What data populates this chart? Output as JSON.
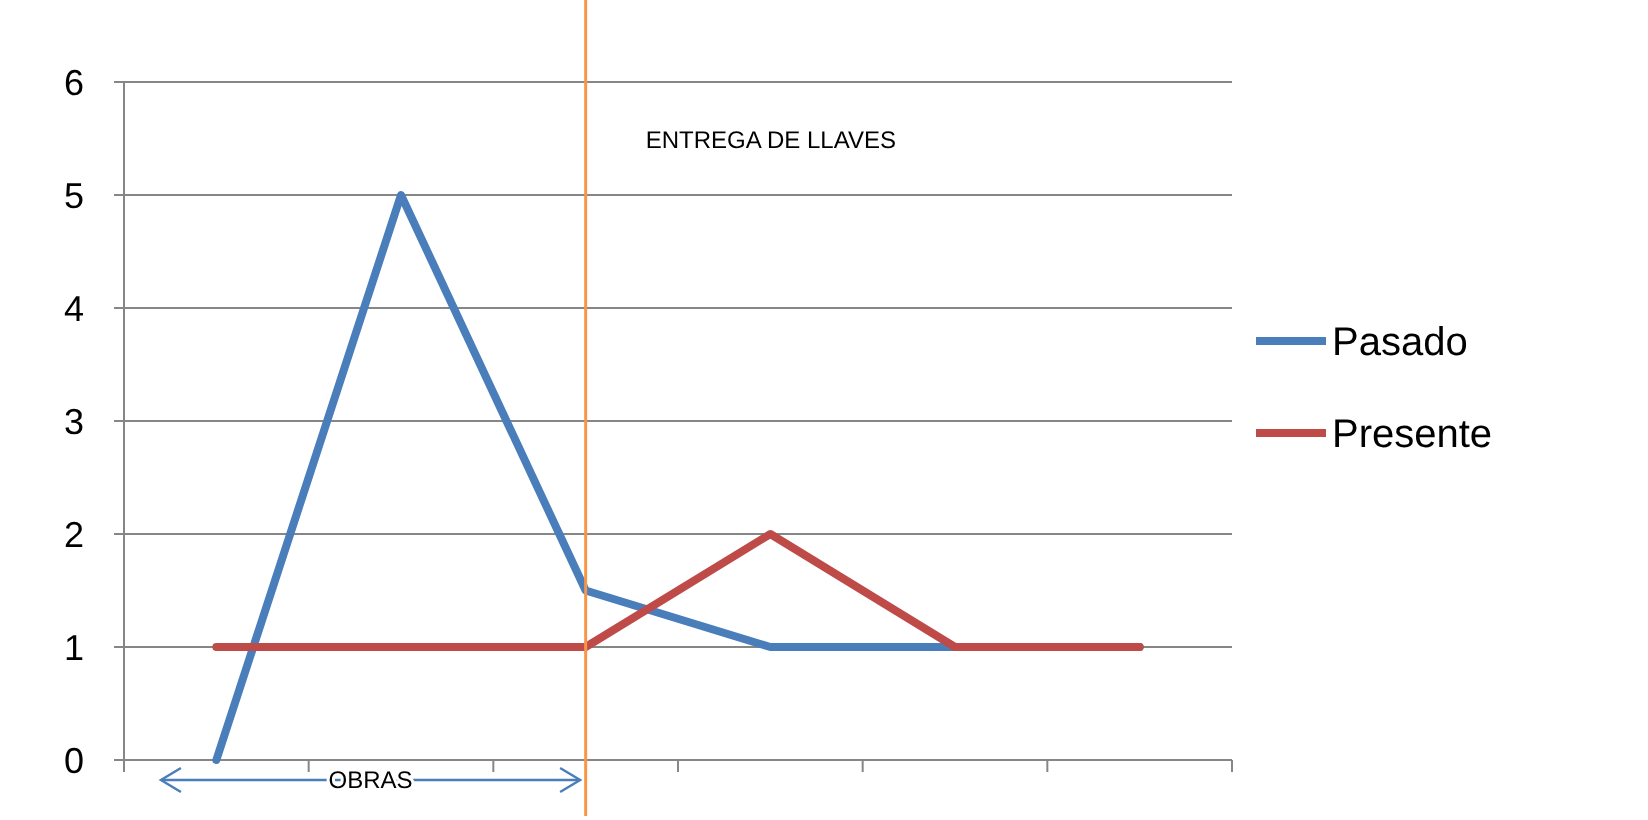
{
  "chart_data": {
    "type": "line",
    "categories": [
      null,
      null,
      null,
      null,
      null,
      null
    ],
    "ylim": [
      0,
      6
    ],
    "yticks": [
      0,
      1,
      2,
      3,
      4,
      5,
      6
    ],
    "tick_labels": "y",
    "grid": "y",
    "legend": "right",
    "marker": "none",
    "line_style": "solid",
    "series": [
      {
        "name": "Pasado",
        "color": "#4a7ebb",
        "values": [
          0,
          5,
          1.5,
          1,
          1,
          1
        ]
      },
      {
        "name": "Presente",
        "color": "#be4b48",
        "values": [
          1,
          1,
          1,
          2,
          1,
          1
        ]
      }
    ],
    "annotations": [
      "ENTREGA DE LLAVES",
      "OBRAS"
    ]
  }
}
